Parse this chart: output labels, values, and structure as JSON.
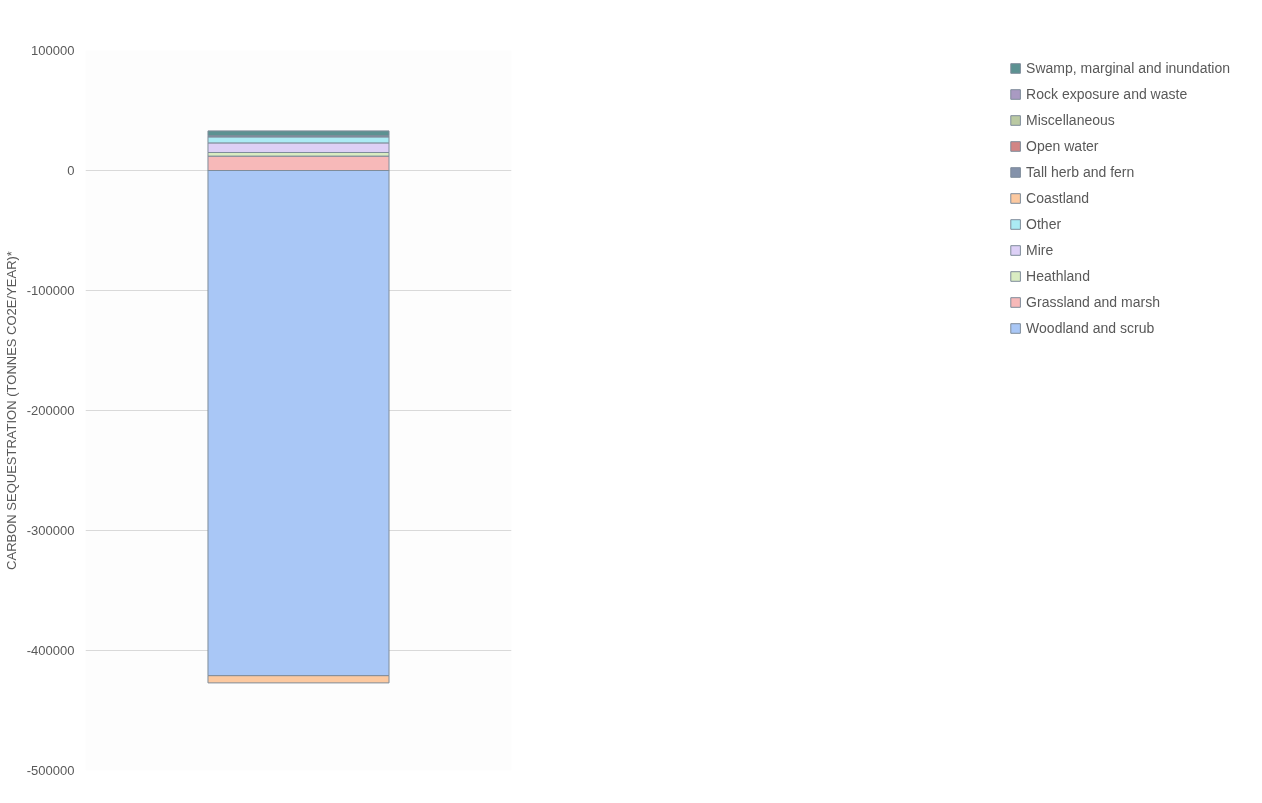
{
  "chart_data": {
    "type": "bar",
    "stacked": true,
    "ylabel": "CARBON SEQUESTRATION (TONNES CO2E/YEAR)*",
    "categories": [
      null
    ],
    "ylim": [
      -500000,
      100000
    ],
    "yticks": [
      -500000,
      -400000,
      -300000,
      -200000,
      -100000,
      0,
      100000
    ],
    "grid": "y",
    "legend": "right",
    "series": [
      {
        "name": "Woodland and scrub",
        "color": "#a9c7f6",
        "values": [
          -421000
        ]
      },
      {
        "name": "Grassland and marsh",
        "color": "#f7b9b9",
        "values": [
          12000
        ]
      },
      {
        "name": "Heathland",
        "color": "#d9ecc2",
        "values": [
          3000
        ]
      },
      {
        "name": "Mire",
        "color": "#ddd0f6",
        "values": [
          8000
        ]
      },
      {
        "name": "Other",
        "color": "#abebf4",
        "values": [
          5000
        ]
      },
      {
        "name": "Coastland",
        "color": "#fcc9a0",
        "values": [
          -6000
        ]
      },
      {
        "name": "Tall herb and fern",
        "color": "#8492aa",
        "values": [
          1000
        ]
      },
      {
        "name": "Open water",
        "color": "#d28585",
        "values": [
          null
        ]
      },
      {
        "name": "Miscellaneous",
        "color": "#bac9a2",
        "values": [
          null
        ]
      },
      {
        "name": "Rock exposure and waste",
        "color": "#a99ac2",
        "values": [
          null
        ]
      },
      {
        "name": "Swamp, marginal and inundation",
        "color": "#5c9292",
        "values": [
          4000
        ]
      }
    ]
  }
}
